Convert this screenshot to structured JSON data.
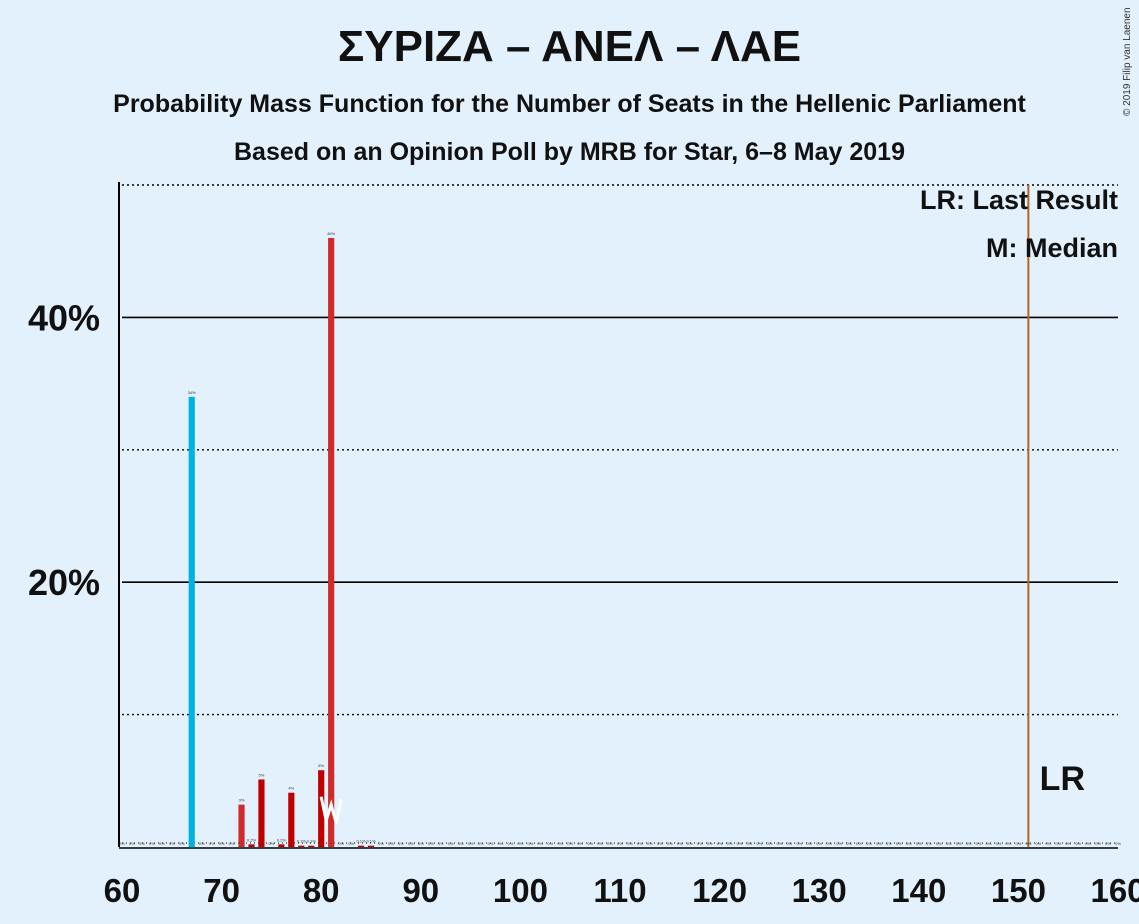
{
  "title": "ΣΥΡΙΖΑ – ΑΝΕΛ – ΛΑΕ",
  "subtitle_1": "Probability Mass Function for the Number of Seats in the Hellenic Parliament",
  "subtitle_2": "Based on an Opinion Poll by MRB for Star, 6–8 May 2019",
  "copyright": "© 2019 Filip van Laenen",
  "legend": {
    "last_result": "LR: Last Result",
    "median": "M: Median"
  },
  "colors": {
    "background": "#e3f1fd",
    "last_result_bar": "#00b2e1",
    "party_red_light": "#d02a2a",
    "party_red_dark": "#c00000",
    "lr_line": "#b5651d"
  },
  "chart_data": {
    "type": "bar",
    "xlim": [
      60,
      160
    ],
    "ylim": [
      0,
      50
    ],
    "x_ticks": [
      "60",
      "70",
      "80",
      "90",
      "100",
      "110",
      "120",
      "130",
      "140",
      "150",
      "160"
    ],
    "y_ticks": [
      "20%",
      "40%"
    ],
    "grid": "solid at 20% and 40%, dotted at 10%, 30% and 50%",
    "series": [
      {
        "values": [
          {
            "x": 67,
            "y": 34,
            "label": "34%",
            "color": "#00b2e1"
          },
          {
            "x": 72,
            "y": 3.2,
            "label": "3%",
            "color": "#d02a2a"
          },
          {
            "x": 73,
            "y": 0.2,
            "label": "0.2%",
            "color": "#c00000"
          },
          {
            "x": 74,
            "y": 5.1,
            "label": "5%",
            "color": "#c00000"
          },
          {
            "x": 76,
            "y": 0.2,
            "label": "0.2%",
            "color": "#c00000"
          },
          {
            "x": 77,
            "y": 4.1,
            "label": "4%",
            "color": "#c00000"
          },
          {
            "x": 78,
            "y": 0.1,
            "label": "0.1%",
            "color": "#c00000"
          },
          {
            "x": 79,
            "y": 0.1,
            "label": "0.1%",
            "color": "#c00000"
          },
          {
            "x": 80,
            "y": 5.8,
            "label": "6%",
            "color": "#c00000"
          },
          {
            "x": 81,
            "y": 46,
            "label": "46%",
            "color": "#d02a2a"
          },
          {
            "x": 84,
            "y": 0.1,
            "label": "0.1%",
            "color": "#c00000"
          },
          {
            "x": 85,
            "y": 0.1,
            "label": "0.1%",
            "color": "#c00000"
          }
        ]
      }
    ],
    "zero_label": "0%",
    "median": {
      "x": 81,
      "label": "M"
    },
    "last_result": {
      "x": 151,
      "label": "LR"
    }
  }
}
